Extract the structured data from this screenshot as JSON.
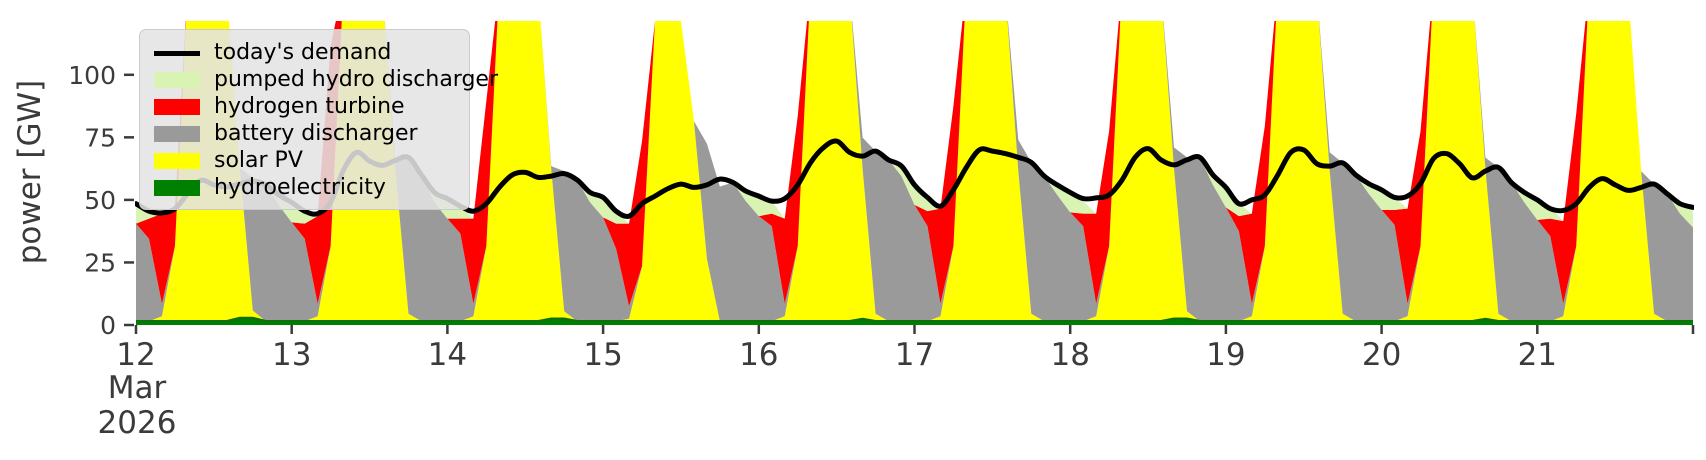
{
  "chart_data": {
    "type": "area",
    "title": "",
    "ylabel": "power [GW]",
    "x_axis_month": "Mar",
    "x_axis_year": "2026",
    "x_start_day": 12,
    "step_hours": 2,
    "x_tick_labels": [
      "12",
      "13",
      "14",
      "15",
      "16",
      "17",
      "18",
      "19",
      "20",
      "21"
    ],
    "y_ticks": [
      0,
      25,
      50,
      75,
      100
    ],
    "ylim": [
      0,
      121.5
    ],
    "grid": false,
    "legend_position": "upper left",
    "style": {
      "tick_color": "#3b3b3b",
      "legend_bg": "rgba(228,228,228,0.87)",
      "legend_edge": "#cbcbcb",
      "hydro_edge_color": "#0b720b",
      "background": "#ffffff"
    },
    "legend": [
      {
        "label": "today's demand",
        "color": "#000000",
        "swatch": "line"
      },
      {
        "label": "pumped hydro discharger",
        "color": "#d9f3b3",
        "swatch": "patch"
      },
      {
        "label": "hydrogen turbine",
        "color": "#ff0000",
        "swatch": "patch"
      },
      {
        "label": "battery discharger",
        "color": "#9a9a9a",
        "swatch": "patch"
      },
      {
        "label": "solar PV",
        "color": "#ffff00",
        "swatch": "patch"
      },
      {
        "label": "hydroelectricity",
        "color": "#008000",
        "swatch": "patch"
      }
    ],
    "stack_order": [
      "hydroelectricity",
      "solar PV",
      "battery discharger",
      "hydrogen turbine",
      "pumped hydro discharger"
    ],
    "series": {
      "hydroelectricity": {
        "color": "#008000",
        "values": [
          1.5,
          1.5,
          1.5,
          1.5,
          1.5,
          1.5,
          1.5,
          1.5,
          2.8,
          2.8,
          1.5,
          1.5,
          1.5,
          1.5,
          1.5,
          1.5,
          1.5,
          1.5,
          1.5,
          1.5,
          1.5,
          1.5,
          1.5,
          1.5,
          1.5,
          1.5,
          1.5,
          1.5,
          1.5,
          1.5,
          1.5,
          1.5,
          2.5,
          2.5,
          1.5,
          1.5,
          1.5,
          1.5,
          1.5,
          1.5,
          1.5,
          1.5,
          1.5,
          1.5,
          1.5,
          1.5,
          1.5,
          1.5,
          1.5,
          1.5,
          1.5,
          1.5,
          1.5,
          1.5,
          1.5,
          1.5,
          2.4,
          1.5,
          1.5,
          1.5,
          1.5,
          1.5,
          1.5,
          1.5,
          1.5,
          1.5,
          1.5,
          1.5,
          1.5,
          1.5,
          1.5,
          1.5,
          1.5,
          1.5,
          1.5,
          1.5,
          1.5,
          1.5,
          1.5,
          1.5,
          2.5,
          2.5,
          1.5,
          1.5,
          1.5,
          1.5,
          1.5,
          1.5,
          1.5,
          1.5,
          1.5,
          1.5,
          1.5,
          1.5,
          1.5,
          1.5,
          1.5,
          1.5,
          1.5,
          1.5,
          1.5,
          1.5,
          1.5,
          1.5,
          2.4,
          1.5,
          1.5,
          1.5,
          1.5,
          1.5,
          1.5,
          1.5,
          1.5,
          1.5,
          1.5,
          1.5,
          1.5,
          1.5,
          1.5,
          1.5,
          1.5
        ]
      },
      "solar PV": {
        "color": "#ffff00",
        "values": [
          0,
          0,
          2,
          30,
          135,
          142,
          140,
          132,
          60,
          3,
          0,
          0,
          0,
          0,
          2,
          30,
          135,
          142,
          140,
          132,
          60,
          3,
          0,
          0,
          0,
          0,
          2,
          30,
          135,
          142,
          140,
          132,
          60,
          3,
          0,
          0,
          0,
          0,
          1,
          22,
          120,
          136,
          120,
          80,
          25,
          0,
          0,
          0,
          0,
          0,
          2,
          30,
          135,
          142,
          140,
          132,
          60,
          3,
          0,
          0,
          0,
          0,
          2,
          30,
          135,
          142,
          140,
          132,
          60,
          3,
          0,
          0,
          0,
          0,
          2,
          30,
          135,
          142,
          140,
          132,
          60,
          3,
          0,
          0,
          0,
          0,
          2,
          30,
          135,
          142,
          140,
          132,
          60,
          3,
          0,
          0,
          0,
          0,
          2,
          30,
          135,
          142,
          140,
          132,
          60,
          3,
          0,
          0,
          0,
          0,
          2,
          30,
          135,
          142,
          140,
          132,
          60,
          3,
          0,
          0,
          0
        ]
      },
      "battery discharger": {
        "color": "#9a9a9a",
        "values": [
          39,
          33,
          5,
          0,
          0,
          0,
          0,
          0,
          0,
          53,
          54.5,
          46.5,
          39.5,
          33,
          5,
          0,
          0,
          0,
          0,
          0,
          4.3,
          62.5,
          58.5,
          47.5,
          41,
          35,
          5,
          0,
          0,
          0,
          0,
          0,
          1,
          56,
          56.5,
          47.5,
          41.5,
          29,
          5,
          0,
          0,
          0,
          0,
          0,
          46,
          53.8,
          55.5,
          48,
          42,
          38,
          5,
          0,
          0,
          0,
          0,
          0,
          12.5,
          65,
          64.5,
          58,
          46.5,
          38,
          5,
          0,
          0,
          0,
          0,
          0,
          12.5,
          60.5,
          58,
          50.5,
          43.5,
          38,
          5,
          0,
          0,
          0,
          0,
          0,
          8.5,
          61.5,
          65.5,
          54.5,
          45.5,
          36,
          5,
          0,
          0,
          0,
          0,
          0,
          7.5,
          60.3,
          58.5,
          51,
          44.5,
          38.5,
          5,
          0,
          0,
          0,
          0,
          0,
          4.5,
          58.5,
          55.5,
          47.5,
          40.5,
          34,
          5,
          0,
          0,
          0,
          0,
          0,
          0,
          51.8,
          51,
          43,
          37.5
        ]
      },
      "hydrogen turbine": {
        "color": "#ff0000",
        "values": [
          0,
          8,
          36,
          15,
          0,
          0,
          0,
          0,
          0,
          0,
          0,
          0,
          0,
          6,
          35,
          80,
          0,
          0,
          0,
          0,
          0,
          0,
          0,
          0,
          0,
          6,
          34,
          58,
          0,
          0,
          0,
          0,
          0,
          0,
          0,
          0,
          0,
          10,
          33,
          50,
          0,
          0,
          0,
          0,
          0,
          0,
          0,
          0,
          0,
          5,
          34,
          52,
          0,
          0,
          0,
          0,
          0,
          0,
          0,
          0,
          0,
          6,
          38,
          56,
          0,
          0,
          0,
          0,
          0,
          0,
          0,
          0,
          0,
          5,
          36,
          46,
          0,
          0,
          0,
          0,
          0,
          0,
          0,
          0,
          0,
          6,
          36,
          48,
          0,
          0,
          0,
          0,
          0,
          0,
          0,
          0,
          0,
          6,
          38,
          46,
          0,
          0,
          0,
          0,
          0,
          0,
          0,
          0,
          0,
          7,
          33,
          53,
          0,
          0,
          0,
          0,
          0,
          0,
          0,
          0,
          0
        ]
      },
      "pumped hydro discharger": {
        "color": "#d9f3b3",
        "values": [
          8,
          5,
          0,
          0,
          0,
          0,
          0,
          0,
          0,
          0,
          0,
          4,
          8,
          5,
          0,
          0,
          0,
          0,
          0,
          0,
          0,
          0,
          0,
          4,
          8,
          5,
          0,
          0,
          0,
          0,
          0,
          0,
          0,
          0,
          0,
          4,
          8,
          5,
          0,
          0,
          0,
          0,
          0,
          0,
          0,
          0,
          0,
          4,
          8,
          5,
          0,
          0,
          0,
          0,
          0,
          0,
          0,
          0,
          0,
          4,
          8,
          5,
          0,
          0,
          0,
          0,
          0,
          0,
          0,
          0,
          0,
          4,
          8,
          5,
          0,
          0,
          0,
          0,
          0,
          0,
          0,
          0,
          0,
          4,
          8,
          5,
          0,
          0,
          0,
          0,
          0,
          0,
          0,
          0,
          0,
          4,
          8,
          5,
          0,
          0,
          0,
          0,
          0,
          0,
          0,
          0,
          0,
          4,
          8,
          5,
          0,
          0,
          0,
          0,
          0,
          0,
          0,
          0,
          0,
          4,
          8
        ]
      }
    },
    "demand": {
      "name": "today's demand",
      "color": "#000000",
      "values": [
        48.5,
        45.5,
        44.8,
        46.5,
        52.5,
        57.8,
        56,
        55.2,
        56.5,
        57.5,
        56,
        52,
        49,
        45.5,
        44.5,
        49,
        62,
        69,
        65.5,
        63.8,
        65.8,
        67,
        60,
        53,
        50.5,
        47.5,
        45.5,
        48.5,
        55,
        60,
        61,
        59,
        59.5,
        60.5,
        58,
        53,
        51,
        45.5,
        43.5,
        48.5,
        51.5,
        54.5,
        56.3,
        55,
        56,
        58.3,
        57,
        53.5,
        51.5,
        49.5,
        50.5,
        56,
        65,
        71,
        73.5,
        69,
        67.5,
        69.5,
        66,
        63.5,
        56,
        51,
        47.5,
        54,
        63,
        70,
        69.5,
        68.5,
        67,
        65,
        59.5,
        56,
        53,
        50.5,
        50.8,
        52,
        58,
        67,
        70.5,
        66,
        64,
        66,
        67,
        60,
        55,
        48.5,
        50,
        52,
        60,
        69,
        70,
        64.5,
        63.5,
        64.8,
        60,
        56.5,
        54,
        51,
        51.5,
        56.5,
        66.5,
        68.5,
        64.5,
        58.8,
        61.5,
        63,
        57,
        53,
        50,
        46.5,
        45.8,
        48.5,
        55,
        58.5,
        56,
        53.8,
        55,
        56.3,
        52.5,
        48.5,
        47
      ]
    }
  }
}
